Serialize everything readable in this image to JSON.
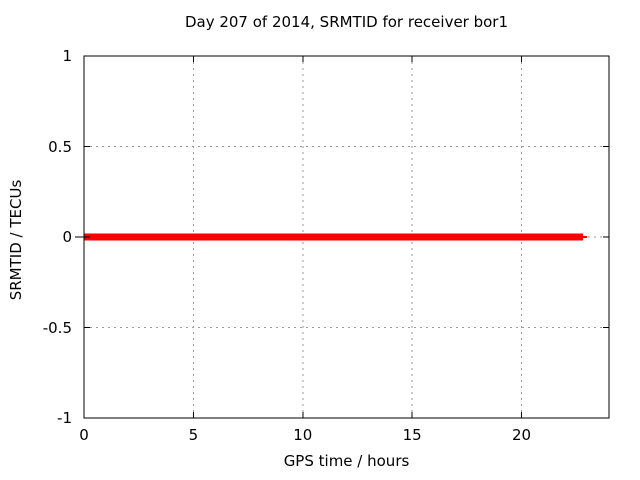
{
  "chart_data": {
    "type": "line",
    "title": "Day 207 of 2014, SRMTID for receiver bor1",
    "xlabel": "GPS time / hours",
    "ylabel": "SRMTID / TECUs",
    "xlim": [
      0,
      24
    ],
    "ylim": [
      -1,
      1
    ],
    "xticks": [
      0,
      5,
      10,
      15,
      20
    ],
    "yticks": [
      -1,
      -0.5,
      0,
      0.5,
      1
    ],
    "grid": true,
    "legend": "none",
    "series": [
      {
        "name": "SRMTID",
        "color": "#ff0000",
        "y_value": 0,
        "segments": [
          {
            "x_start": 0,
            "x_end": 22.8,
            "linewidth": 7
          },
          {
            "x_start": 22.8,
            "x_end": 23.0,
            "linewidth": 2
          }
        ]
      }
    ],
    "colors": {
      "line": "#ff0000",
      "grid": "#9a9a9a",
      "axis": "#000000",
      "text": "#000000",
      "background": "#ffffff"
    }
  }
}
